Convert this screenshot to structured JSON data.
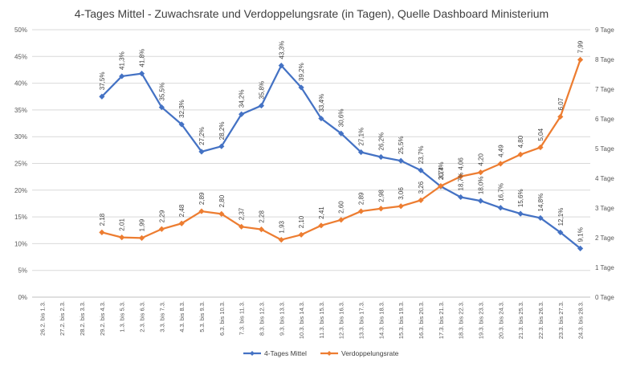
{
  "chart_data": {
    "type": "line",
    "title": "4-Tages Mittel - Zuwachsrate und Verdoppelungsrate (in Tagen), Quelle Dashboard Ministerium",
    "categories": [
      "26.2. bis 1.3.",
      "27.2. bis 2.3.",
      "28.2. bis 3.3.",
      "29.2. bis 4.3.",
      "1.3. bis 5.3.",
      "2.3. bis 6.3.",
      "3.3. bis 7.3.",
      "4.3. bis 8.3.",
      "5.3. bis 9.3.",
      "6.3. bis 10.3.",
      "7.3. bis 11.3.",
      "8.3. bis 12.3.",
      "9.3. bis 13.3.",
      "10.3. bis 14.3.",
      "11.3. bis 15.3.",
      "12.3. bis 16.3.",
      "13.3. bis 17.3.",
      "14.3. bis 18.3.",
      "15.3. bis 19.3.",
      "16.3. bis 20.3.",
      "17.3. bis 21.3.",
      "18.3. bis 22.3.",
      "19.3. bis 23.3.",
      "20.3. bis 24.3.",
      "21.3. bis 25.3.",
      "22.3. bis 26.3.",
      "23.3. bis 27.3.",
      "24.3. bis 28.3."
    ],
    "y_left": {
      "min": 0,
      "max": 50,
      "step": 5,
      "suffix": "%",
      "ticks": [
        "0%",
        "5%",
        "10%",
        "15%",
        "20%",
        "25%",
        "30%",
        "35%",
        "40%",
        "45%",
        "50%"
      ]
    },
    "y_right": {
      "min": 0,
      "max": 9,
      "step": 1,
      "ticks": [
        "0 Tage",
        "1 Tage",
        "2 Tage",
        "3 Tage",
        "4 Tage",
        "5 Tage",
        "6 Tage",
        "7 Tage",
        "8 Tage",
        "9 Tage"
      ]
    },
    "grid": true,
    "legend_position": "bottom",
    "series": [
      {
        "name": "4-Tages Mittel",
        "axis": "left",
        "color": "#4472C4",
        "values": [
          null,
          null,
          null,
          37.5,
          41.3,
          41.8,
          35.5,
          32.3,
          27.2,
          28.2,
          34.2,
          35.8,
          43.3,
          39.2,
          33.4,
          30.6,
          27.1,
          26.2,
          25.5,
          23.7,
          20.7,
          18.7,
          18.0,
          16.7,
          15.6,
          14.8,
          12.1,
          9.1
        ],
        "labels": [
          null,
          null,
          null,
          "37,5%",
          "41,3%",
          "41,8%",
          "35,5%",
          "32,3%",
          "27,2%",
          "28,2%",
          "34,2%",
          "35,8%",
          "43,3%",
          "39,2%",
          "33,4%",
          "30,6%",
          "27,1%",
          "26,2%",
          "25,5%",
          "23,7%",
          "20,7%",
          "18,7%",
          "18,0%",
          "16,7%",
          "15,6%",
          "14,8%",
          "12,1%",
          "9,1%"
        ]
      },
      {
        "name": "Verdoppelungsrate",
        "axis": "right",
        "color": "#ED7D31",
        "values": [
          null,
          null,
          null,
          2.18,
          2.01,
          1.99,
          2.29,
          2.48,
          2.89,
          2.8,
          2.37,
          2.28,
          1.93,
          2.1,
          2.41,
          2.6,
          2.89,
          2.98,
          3.06,
          3.26,
          3.74,
          4.06,
          4.2,
          4.49,
          4.8,
          5.04,
          6.07,
          7.99
        ],
        "labels": [
          null,
          null,
          null,
          "2,18",
          "2,01",
          "1,99",
          "2,29",
          "2,48",
          "2,89",
          "2,80",
          "2,37",
          "2,28",
          "1,93",
          "2,10",
          "2,41",
          "2,60",
          "2,89",
          "2,98",
          "3,06",
          "3,26",
          "3,74",
          "4,06",
          "4,20",
          "4,49",
          "4,80",
          "5,04",
          "6,07",
          "7,99"
        ]
      }
    ]
  }
}
